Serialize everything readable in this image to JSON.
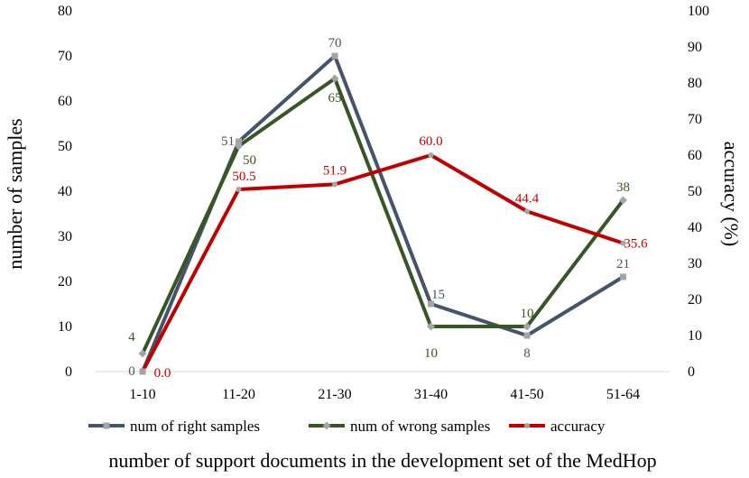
{
  "chart_data": {
    "type": "line",
    "categories": [
      "1-10",
      "11-20",
      "21-30",
      "31-40",
      "41-50",
      "51-64"
    ],
    "xlabel": "number of support documents in the development set of the MedHop",
    "ylabel_left": "number of samples",
    "ylabel_right": "accuracy (%)",
    "ylim_left": [
      0,
      80
    ],
    "ylim_right": [
      0,
      100
    ],
    "yticks_left": [
      "0",
      "10",
      "20",
      "30",
      "40",
      "50",
      "60",
      "70",
      "80"
    ],
    "yticks_right": [
      "0",
      "10",
      "20",
      "30",
      "40",
      "50",
      "60",
      "70",
      "80",
      "90",
      "100"
    ],
    "grid": false,
    "legend_position": "bottom",
    "series": [
      {
        "name": "num of right samples",
        "axis": "left",
        "color": "#44546A",
        "marker": "square",
        "values": [
          0,
          51,
          70,
          15,
          8,
          21
        ],
        "labels": [
          "0",
          "51",
          "70",
          "15",
          "8",
          "21"
        ]
      },
      {
        "name": "num of wrong samples",
        "axis": "left",
        "color": "#375623",
        "marker": "diamond",
        "values": [
          4,
          50,
          65,
          10,
          10,
          38
        ],
        "labels": [
          "4",
          "50",
          "65",
          "10",
          "10",
          "38"
        ]
      },
      {
        "name": "accuracy",
        "axis": "right",
        "color": "#C00000",
        "marker": "circle",
        "values": [
          0.0,
          50.5,
          51.9,
          60.0,
          44.4,
          35.6
        ],
        "labels": [
          "0.0",
          "50.5",
          "51.9",
          "60.0",
          "44.4",
          "35.6"
        ]
      }
    ]
  }
}
